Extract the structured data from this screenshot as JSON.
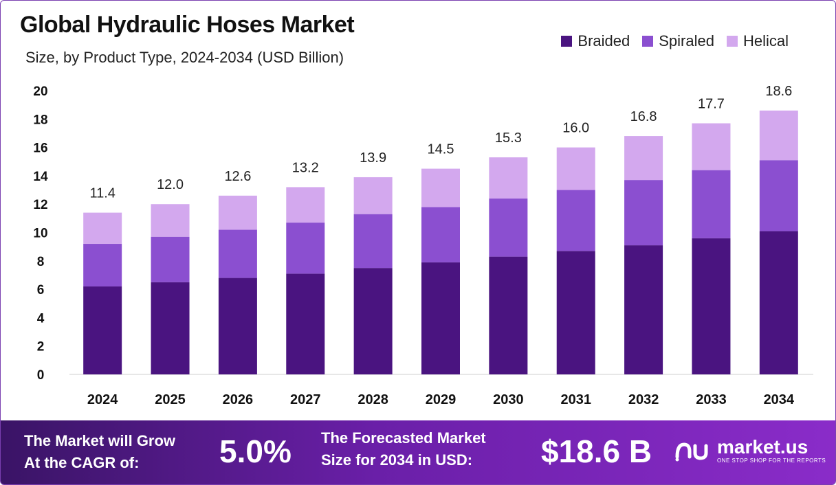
{
  "header": {
    "title": "Global Hydraulic Hoses Market",
    "subtitle": "Size, by Product Type, 2024-2034 (USD Billion)"
  },
  "legend": [
    {
      "label": "Braided",
      "color": "#4a1480"
    },
    {
      "label": "Spiraled",
      "color": "#8b4fd0"
    },
    {
      "label": "Helical",
      "color": "#d3a8ee"
    }
  ],
  "chart_data": {
    "type": "bar",
    "stacked": true,
    "title": "Global Hydraulic Hoses Market",
    "subtitle": "Size, by Product Type, 2024-2034 (USD Billion)",
    "xlabel": "",
    "ylabel": "",
    "ylim": [
      0,
      20
    ],
    "yticks": [
      0,
      2,
      4,
      6,
      8,
      10,
      12,
      14,
      16,
      18,
      20
    ],
    "categories": [
      "2024",
      "2025",
      "2026",
      "2027",
      "2028",
      "2029",
      "2030",
      "2031",
      "2032",
      "2033",
      "2034"
    ],
    "series": [
      {
        "name": "Braided",
        "color": "#4a1480",
        "values": [
          6.2,
          6.5,
          6.8,
          7.1,
          7.5,
          7.9,
          8.3,
          8.7,
          9.1,
          9.6,
          10.1
        ]
      },
      {
        "name": "Spiraled",
        "color": "#8b4fd0",
        "values": [
          3.0,
          3.2,
          3.4,
          3.6,
          3.8,
          3.9,
          4.1,
          4.3,
          4.6,
          4.8,
          5.0
        ]
      },
      {
        "name": "Helical",
        "color": "#d3a8ee",
        "values": [
          2.2,
          2.3,
          2.4,
          2.5,
          2.6,
          2.7,
          2.9,
          3.0,
          3.1,
          3.3,
          3.5
        ]
      }
    ],
    "totals": [
      "11.4",
      "12.0",
      "12.6",
      "13.2",
      "13.9",
      "14.5",
      "15.3",
      "16.0",
      "16.8",
      "17.7",
      "18.6"
    ],
    "grid": false,
    "legend_position": "top-right"
  },
  "footer": {
    "cagr_text_line1": "The Market will Grow",
    "cagr_text_line2": "At the CAGR of:",
    "cagr_value": "5.0%",
    "forecast_text_line1": "The Forecasted Market",
    "forecast_text_line2": "Size for 2034 in USD:",
    "forecast_value": "$18.6 B",
    "brand_name": "market.us",
    "brand_tagline": "ONE STOP SHOP FOR THE REPORTS"
  }
}
